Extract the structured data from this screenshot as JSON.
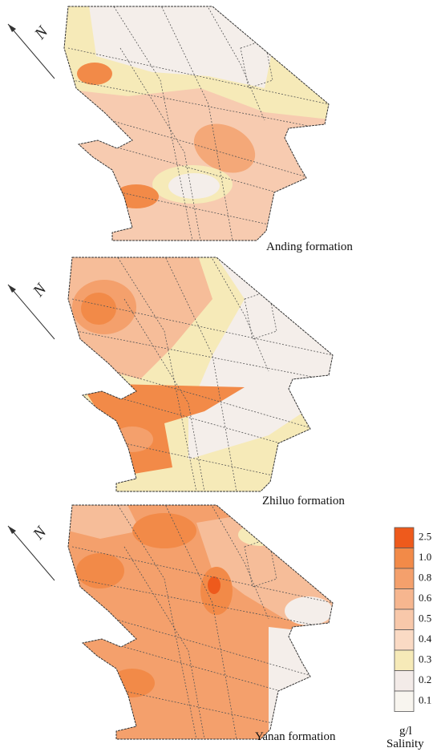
{
  "panels": [
    {
      "north": "N",
      "caption": "Anding formation"
    },
    {
      "north": "N",
      "caption": "Zhiluo formation"
    },
    {
      "north": "N",
      "caption": "Yanan formation"
    }
  ],
  "legend": {
    "items": [
      {
        "label": "2.5",
        "color": "#ee5a1c"
      },
      {
        "label": "1.0",
        "color": "#f28a48"
      },
      {
        "label": "0.8",
        "color": "#f4a06c"
      },
      {
        "label": "0.6",
        "color": "#f6b68f"
      },
      {
        "label": "0.5",
        "color": "#f8c8aa"
      },
      {
        "label": "0.4",
        "color": "#fadac4"
      },
      {
        "label": "0.3",
        "color": "#f6eab8"
      },
      {
        "label": "0.2",
        "color": "#f3ebe8"
      },
      {
        "label": "0.1",
        "color": "#f8f5ef"
      }
    ],
    "unit": "g/l",
    "title": "Salinity"
  }
}
